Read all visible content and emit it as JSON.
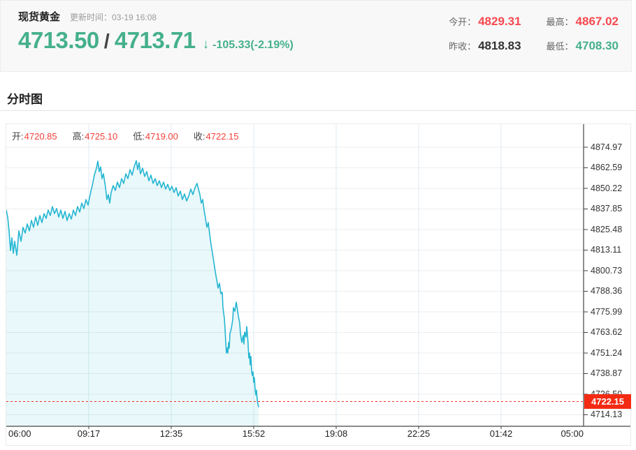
{
  "colors": {
    "green": "#45b08c",
    "red": "#f5494f",
    "dark": "#333333",
    "chart_red": "#f4403a",
    "dash_red": "#f2301e",
    "badge_red": "#f32b13",
    "line": "#25b6d2"
  },
  "header": {
    "title": "现货黄金",
    "update_time": "更新时间：03-19 16:08",
    "bid": "4713.50",
    "separator": "/",
    "ask": "4713.71",
    "arrow": "↓",
    "change": "-105.33(-2.19%)",
    "stats": [
      {
        "label": "今开：",
        "value": "4829.31",
        "color": "#f5494f"
      },
      {
        "label": "最高：",
        "value": "4867.02",
        "color": "#f5494f"
      },
      {
        "label": "昨收：",
        "value": "4818.83",
        "color": "#333333"
      },
      {
        "label": "最低：",
        "value": "4708.30",
        "color": "#45b08c"
      }
    ]
  },
  "section": {
    "title": "分时图"
  },
  "chart": {
    "ohlc": [
      {
        "label": "开:",
        "value": "4720.85"
      },
      {
        "label": "高:",
        "value": "4725.10"
      },
      {
        "label": "低:",
        "value": "4719.00"
      },
      {
        "label": "收:",
        "value": "4722.15"
      }
    ],
    "last_price": "4722.15",
    "last_price_value": 4722.15
  },
  "chart_data": {
    "type": "area",
    "title": "分时图",
    "grid": true,
    "x_ticks": [
      "06:00",
      "09:17",
      "12:35",
      "15:52",
      "19:08",
      "22:25",
      "01:42",
      "05:00"
    ],
    "y_tick_labels": [
      "4874.97",
      "4862.59",
      "4850.22",
      "4837.85",
      "4825.48",
      "4813.11",
      "4800.73",
      "4788.36",
      "4775.99",
      "4763.62",
      "4751.24",
      "4738.87",
      "4726.50",
      "4714.13"
    ],
    "y_axis": {
      "top": 4874.97,
      "step": 12.37
    },
    "current_price": 4722.15,
    "session_open": 4720.85,
    "session_high": 4725.1,
    "session_low": 4719.0,
    "session_close": 4722.15,
    "series": [
      {
        "name": "price",
        "points": [
          [
            0,
            4837.2
          ],
          [
            2,
            4833.0
          ],
          [
            4,
            4824.7
          ],
          [
            6,
            4812.9
          ],
          [
            8,
            4820.5
          ],
          [
            10,
            4811.2
          ],
          [
            12,
            4818.4
          ],
          [
            15,
            4810.0
          ],
          [
            18,
            4824.7
          ],
          [
            21,
            4818.4
          ],
          [
            24,
            4826.8
          ],
          [
            27,
            4823.4
          ],
          [
            30,
            4828.9
          ],
          [
            33,
            4824.7
          ],
          [
            36,
            4831.0
          ],
          [
            39,
            4826.8
          ],
          [
            42,
            4833.0
          ],
          [
            45,
            4828.0
          ],
          [
            48,
            4833.9
          ],
          [
            51,
            4829.7
          ],
          [
            54,
            4835.1
          ],
          [
            57,
            4832.2
          ],
          [
            60,
            4837.2
          ],
          [
            63,
            4833.9
          ],
          [
            66,
            4839.3
          ],
          [
            69,
            4835.1
          ],
          [
            72,
            4838.1
          ],
          [
            75,
            4833.0
          ],
          [
            78,
            4837.2
          ],
          [
            81,
            4832.2
          ],
          [
            84,
            4836.4
          ],
          [
            87,
            4830.9
          ],
          [
            90,
            4835.1
          ],
          [
            93,
            4831.8
          ],
          [
            96,
            4837.2
          ],
          [
            99,
            4833.9
          ],
          [
            102,
            4839.3
          ],
          [
            105,
            4836.0
          ],
          [
            108,
            4841.4
          ],
          [
            111,
            4838.1
          ],
          [
            114,
            4843.5
          ],
          [
            117,
            4840.2
          ],
          [
            120,
            4846.5
          ],
          [
            123,
            4851.9
          ],
          [
            126,
            4858.2
          ],
          [
            129,
            4862.4
          ],
          [
            131,
            4866.6
          ],
          [
            133,
            4860.3
          ],
          [
            135,
            4863.2
          ],
          [
            137,
            4856.1
          ],
          [
            139,
            4859.0
          ],
          [
            142,
            4850.7
          ],
          [
            144,
            4843.5
          ],
          [
            146,
            4846.5
          ],
          [
            148,
            4841.4
          ],
          [
            150,
            4847.7
          ],
          [
            153,
            4851.9
          ],
          [
            156,
            4849.0
          ],
          [
            159,
            4854.0
          ],
          [
            162,
            4850.7
          ],
          [
            165,
            4856.1
          ],
          [
            168,
            4853.2
          ],
          [
            171,
            4859.0
          ],
          [
            174,
            4856.1
          ],
          [
            177,
            4861.5
          ],
          [
            180,
            4858.2
          ],
          [
            183,
            4863.2
          ],
          [
            186,
            4866.9
          ],
          [
            188,
            4861.5
          ],
          [
            190,
            4865.7
          ],
          [
            192,
            4859.0
          ],
          [
            195,
            4862.4
          ],
          [
            198,
            4857.4
          ],
          [
            201,
            4860.3
          ],
          [
            204,
            4854.8
          ],
          [
            207,
            4858.2
          ],
          [
            210,
            4853.2
          ],
          [
            213,
            4856.1
          ],
          [
            216,
            4851.9
          ],
          [
            219,
            4854.8
          ],
          [
            222,
            4850.7
          ],
          [
            225,
            4854.0
          ],
          [
            228,
            4849.8
          ],
          [
            231,
            4852.7
          ],
          [
            234,
            4849.0
          ],
          [
            237,
            4851.5
          ],
          [
            240,
            4847.7
          ],
          [
            243,
            4850.7
          ],
          [
            246,
            4845.6
          ],
          [
            249,
            4848.6
          ],
          [
            252,
            4843.5
          ],
          [
            255,
            4846.9
          ],
          [
            258,
            4842.7
          ],
          [
            261,
            4845.6
          ],
          [
            264,
            4849.8
          ],
          [
            267,
            4846.5
          ],
          [
            270,
            4850.7
          ],
          [
            273,
            4853.2
          ],
          [
            275,
            4849.8
          ],
          [
            277,
            4846.5
          ],
          [
            279,
            4841.4
          ],
          [
            281,
            4843.5
          ],
          [
            283,
            4837.2
          ],
          [
            285,
            4832.2
          ],
          [
            287,
            4826.8
          ],
          [
            289,
            4829.7
          ],
          [
            291,
            4822.6
          ],
          [
            293,
            4816.3
          ],
          [
            295,
            4811.2
          ],
          [
            297,
            4805.8
          ],
          [
            299,
            4800.3
          ],
          [
            301,
            4795.3
          ],
          [
            303,
            4790.3
          ],
          [
            305,
            4793.2
          ],
          [
            307,
            4786.9
          ],
          [
            309,
            4787.7
          ],
          [
            310,
            4778.5
          ],
          [
            312,
            4772.2
          ],
          [
            313,
            4765.9
          ],
          [
            314,
            4757.6
          ],
          [
            315,
            4751.3
          ],
          [
            316,
            4754.2
          ],
          [
            317,
            4751.3
          ],
          [
            318,
            4757.6
          ],
          [
            319,
            4754.2
          ],
          [
            320,
            4763.0
          ],
          [
            322,
            4766.0
          ],
          [
            324,
            4771.4
          ],
          [
            325,
            4778.5
          ],
          [
            327,
            4776.4
          ],
          [
            329,
            4781.9
          ],
          [
            330,
            4779.4
          ],
          [
            332,
            4773.5
          ],
          [
            334,
            4769.3
          ],
          [
            335,
            4763.0
          ],
          [
            337,
            4757.6
          ],
          [
            339,
            4761.8
          ],
          [
            340,
            4756.7
          ],
          [
            341,
            4763.9
          ],
          [
            343,
            4760.9
          ],
          [
            344,
            4767.2
          ],
          [
            345,
            4762.6
          ],
          [
            346,
            4756.7
          ],
          [
            347,
            4748.3
          ],
          [
            348,
            4751.3
          ],
          [
            349,
            4744.1
          ],
          [
            350,
            4749.2
          ],
          [
            351,
            4740.8
          ],
          [
            352,
            4737.8
          ],
          [
            353,
            4739.9
          ],
          [
            354,
            4733.6
          ],
          [
            355,
            4736.5
          ],
          [
            356,
            4729.4
          ],
          [
            357,
            4726.1
          ],
          [
            358,
            4729.0
          ],
          [
            359,
            4723.2
          ],
          [
            360,
            4720.6
          ],
          [
            361,
            4718.9
          ]
        ]
      }
    ]
  }
}
